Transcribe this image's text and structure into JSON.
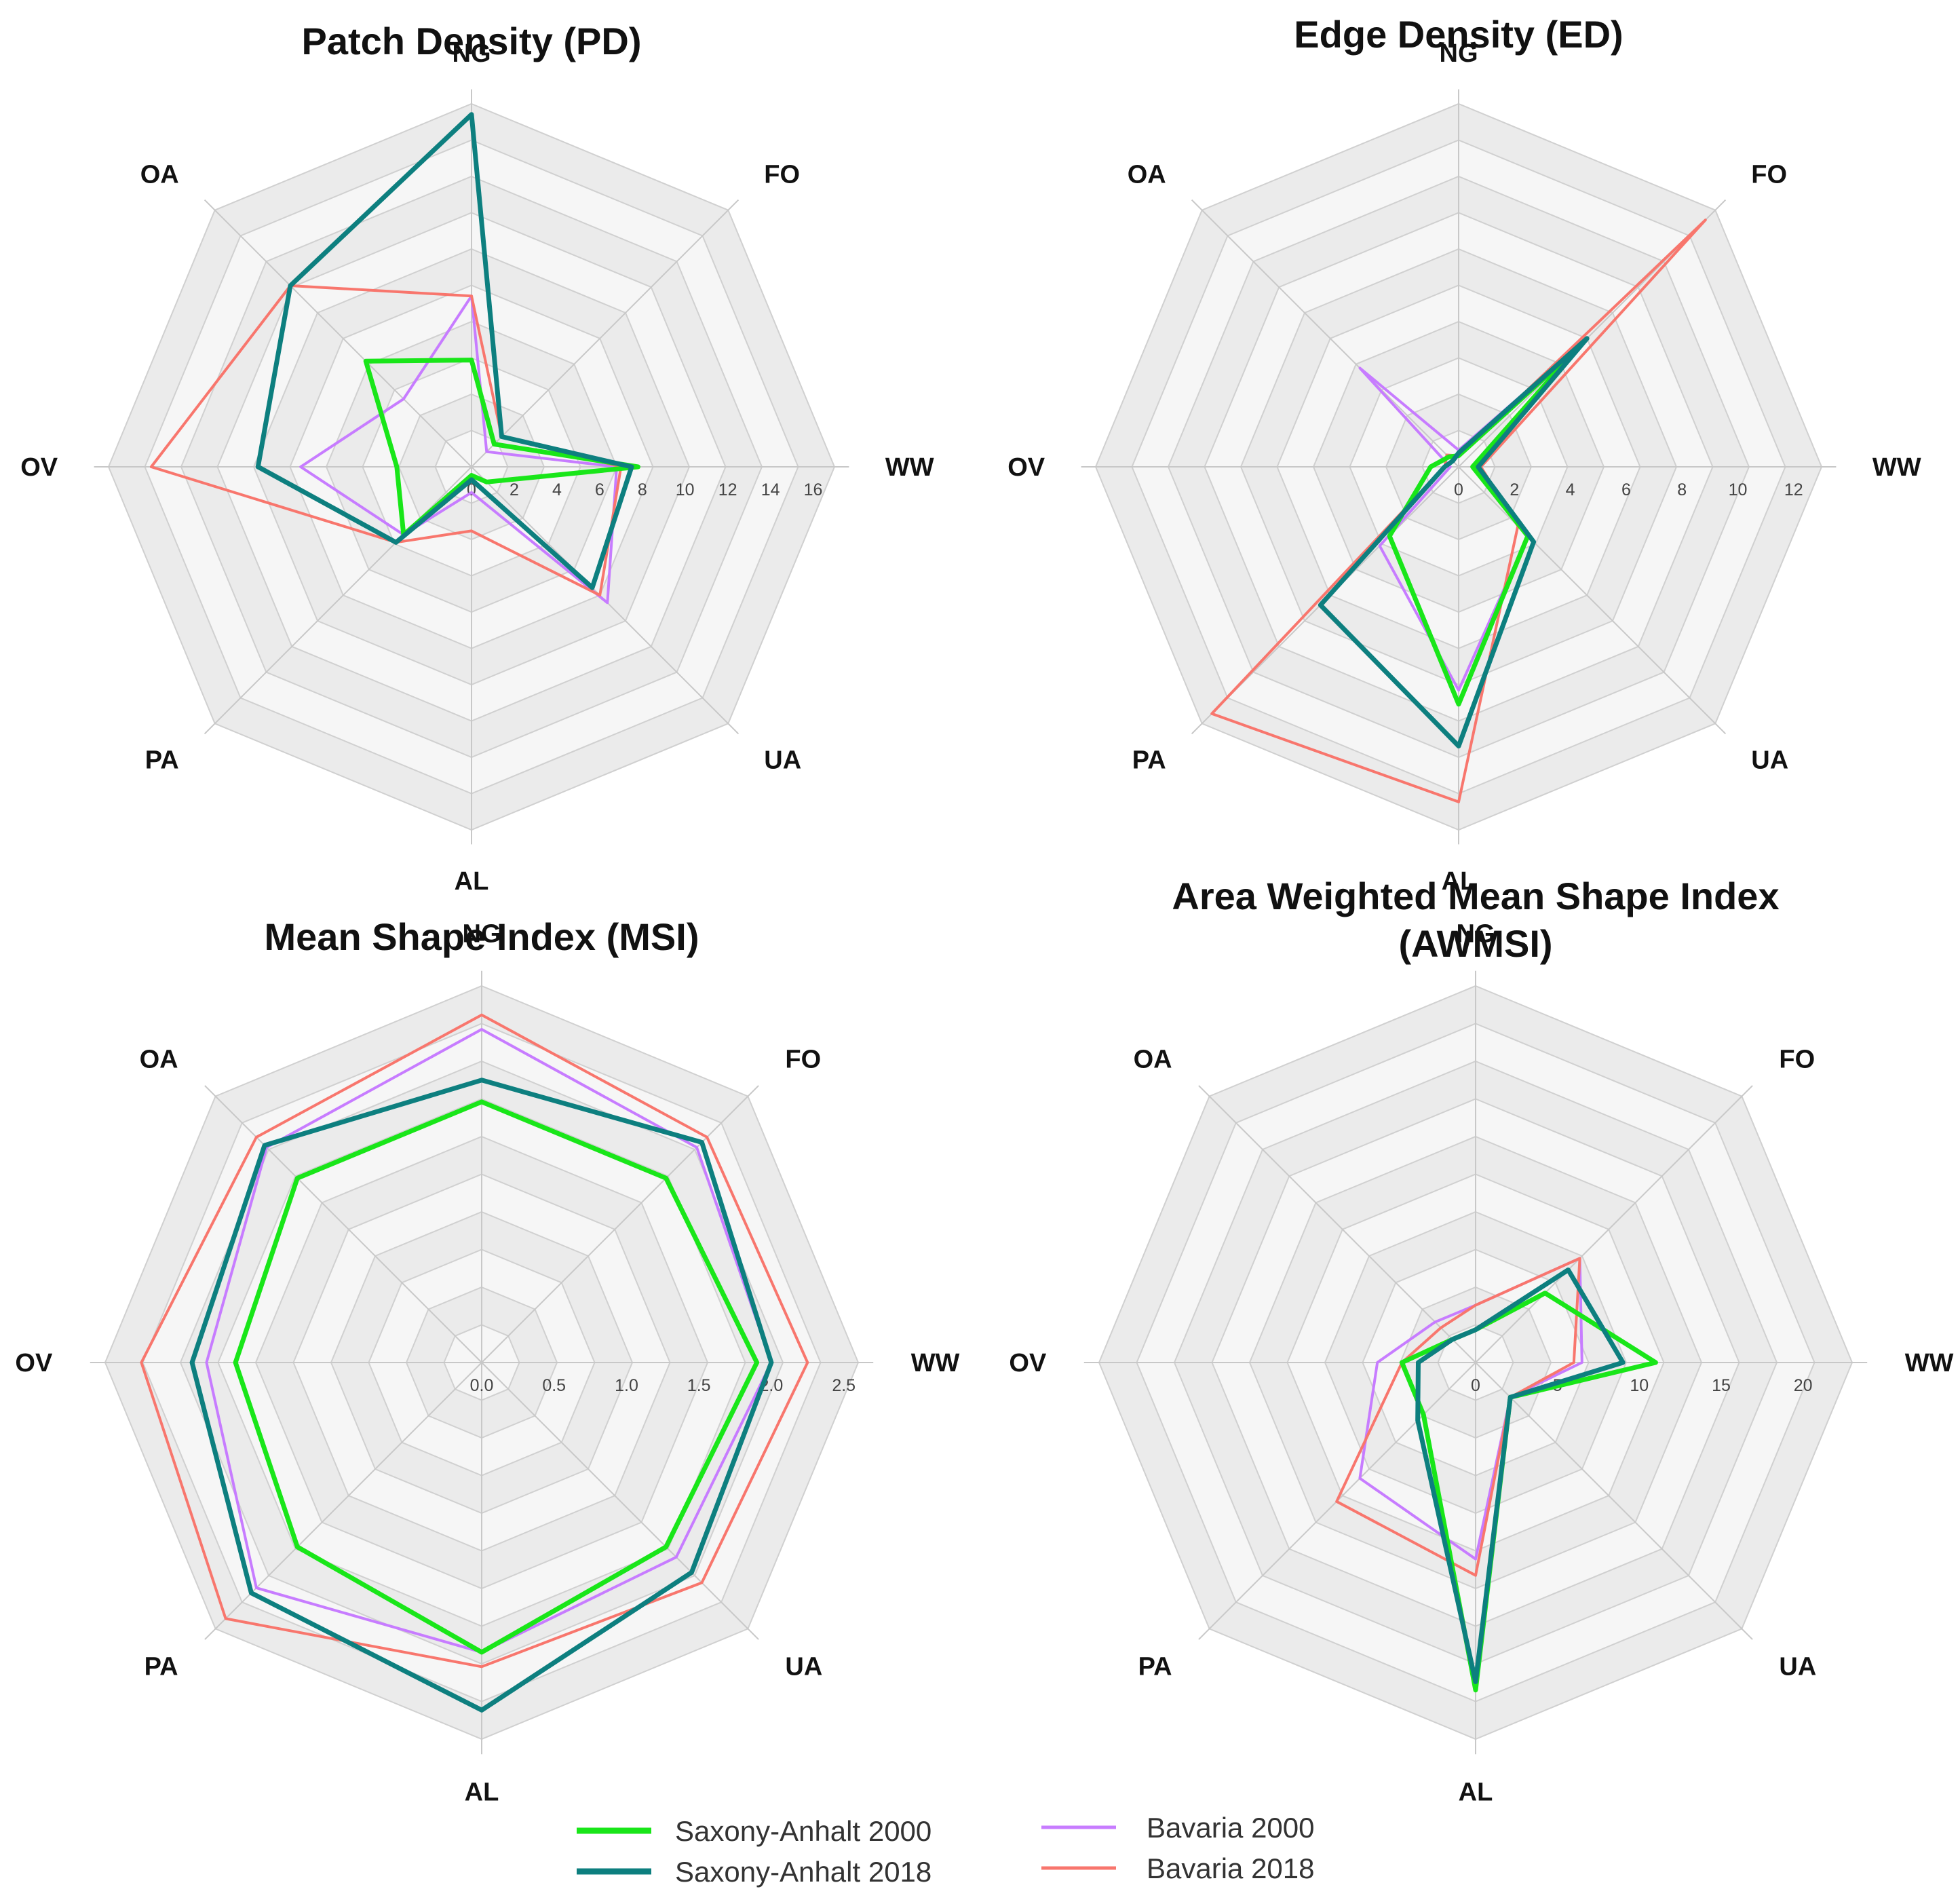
{
  "series_colors": {
    "Saxony-Anhalt 2000": "#19e619",
    "Saxony-Anhalt 2018": "#0d7f7f",
    "Bavaria 2000": "#c77cff",
    "Bavaria 2018": "#f8766d"
  },
  "legend": {
    "items": [
      "Saxony-Anhalt 2000",
      "Saxony-Anhalt 2018",
      "Bavaria 2000",
      "Bavaria 2018"
    ]
  },
  "chart_data": [
    {
      "type": "radar",
      "title": [
        "Patch Density (PD)"
      ],
      "categories": [
        "NG",
        "FO",
        "WW",
        "UA",
        "AL",
        "PA",
        "OV",
        "OA"
      ],
      "rmax": 17,
      "ticks": [
        "0",
        "2",
        "4",
        "6",
        "8",
        "10",
        "12",
        "14",
        "16"
      ],
      "tick_values": [
        0,
        2,
        4,
        6,
        8,
        10,
        12,
        14,
        16
      ],
      "series": [
        {
          "name": "Saxony-Anhalt 2000",
          "values": [
            5.0,
            1.5,
            7.8,
            1.0,
            0.4,
            4.5,
            3.5,
            7.0
          ]
        },
        {
          "name": "Saxony-Anhalt 2018",
          "values": [
            16.5,
            2.0,
            7.5,
            8.0,
            0.6,
            5.0,
            10.0,
            12.0
          ]
        },
        {
          "name": "Bavaria 2000",
          "values": [
            8.0,
            1.0,
            6.8,
            9.0,
            1.2,
            4.5,
            8.0,
            4.5
          ]
        },
        {
          "name": "Bavaria 2018",
          "values": [
            8.0,
            2.0,
            7.0,
            8.5,
            3.0,
            5.0,
            15.0,
            12.0
          ]
        }
      ]
    },
    {
      "type": "radar",
      "title": [
        "Edge Density (ED)"
      ],
      "categories": [
        "NG",
        "FO",
        "WW",
        "UA",
        "AL",
        "PA",
        "OV",
        "OA"
      ],
      "rmax": 13,
      "ticks": [
        "0",
        "2",
        "4",
        "6",
        "8",
        "10",
        "12"
      ],
      "tick_values": [
        0,
        2,
        4,
        6,
        8,
        10,
        12
      ],
      "series": [
        {
          "name": "Saxony-Anhalt 2000",
          "values": [
            0.4,
            6.0,
            0.5,
            3.5,
            8.5,
            3.5,
            1.0,
            0.5
          ]
        },
        {
          "name": "Saxony-Anhalt 2018",
          "values": [
            0.5,
            6.5,
            0.7,
            3.8,
            10.0,
            7.0,
            0.5,
            0.3
          ]
        },
        {
          "name": "Bavaria 2000",
          "values": [
            0.6,
            6.5,
            0.6,
            3.5,
            8.0,
            4.0,
            0.3,
            5.0
          ]
        },
        {
          "name": "Bavaria 2018",
          "values": [
            0.4,
            12.5,
            0.8,
            3.0,
            12.0,
            12.5,
            0.5,
            0.6
          ]
        }
      ]
    },
    {
      "type": "radar",
      "title": [
        "Mean Shape Index (MSI)"
      ],
      "categories": [
        "NG",
        "FO",
        "WW",
        "UA",
        "AL",
        "PA",
        "OV",
        "OA"
      ],
      "rmax": 2.6,
      "ticks": [
        "0.0",
        "0.5",
        "1.0",
        "1.5",
        "2.0",
        "2.5"
      ],
      "tick_values": [
        0,
        0.5,
        1.0,
        1.5,
        2.0,
        2.5
      ],
      "series": [
        {
          "name": "Saxony-Anhalt 2000",
          "values": [
            1.8,
            1.8,
            1.9,
            1.8,
            2.0,
            1.8,
            1.7,
            1.8
          ]
        },
        {
          "name": "Saxony-Anhalt 2018",
          "values": [
            1.95,
            2.15,
            2.0,
            2.05,
            2.4,
            2.25,
            2.0,
            2.12
          ]
        },
        {
          "name": "Bavaria 2000",
          "values": [
            2.3,
            2.1,
            2.0,
            1.9,
            2.0,
            2.2,
            1.9,
            2.1
          ]
        },
        {
          "name": "Bavaria 2018",
          "values": [
            2.4,
            2.2,
            2.25,
            2.15,
            2.1,
            2.5,
            2.35,
            2.2
          ]
        }
      ]
    },
    {
      "type": "radar",
      "title": [
        "Area Weighted Mean Shape Index",
        "(AWMSI)"
      ],
      "categories": [
        "NG",
        "FO",
        "WW",
        "UA",
        "AL",
        "PA",
        "OV",
        "OA"
      ],
      "rmax": 23,
      "ticks": [
        "0",
        "5",
        "10",
        "15",
        "20"
      ],
      "tick_values": [
        0,
        5,
        10,
        15,
        20
      ],
      "series": [
        {
          "name": "Saxony-Anhalt 2000",
          "values": [
            2.0,
            6.0,
            11.0,
            3.0,
            20.0,
            4.5,
            4.5,
            2.0
          ]
        },
        {
          "name": "Saxony-Anhalt 2018",
          "values": [
            2.0,
            8.0,
            9.0,
            3.0,
            19.5,
            5.0,
            3.5,
            2.0
          ]
        },
        {
          "name": "Bavaria 2000",
          "values": [
            3.5,
            9.0,
            6.5,
            3.0,
            12.0,
            10.0,
            6.0,
            3.5
          ]
        },
        {
          "name": "Bavaria 2018",
          "values": [
            3.5,
            9.0,
            6.0,
            3.0,
            13.0,
            12.0,
            4.5,
            3.0
          ]
        }
      ]
    }
  ]
}
